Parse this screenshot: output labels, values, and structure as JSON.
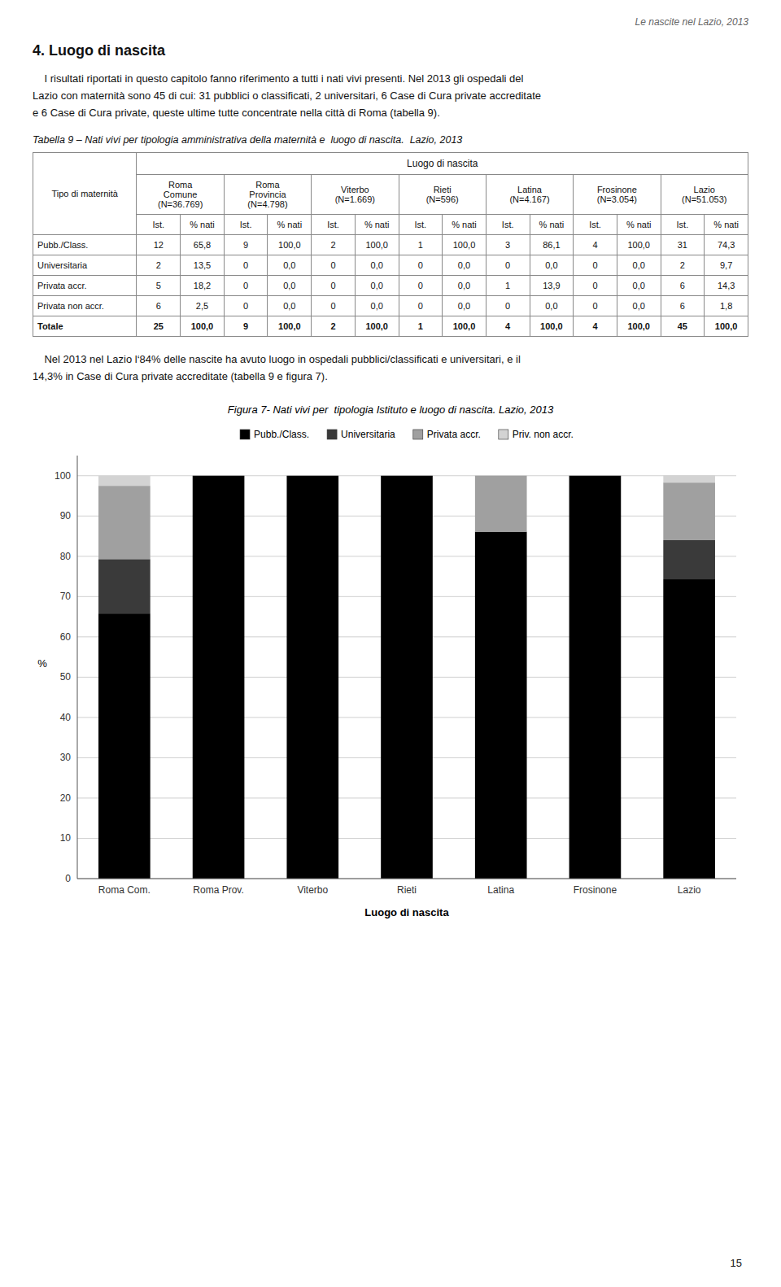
{
  "page": {
    "header_text": "Le nascite nel Lazio, 2013",
    "section_title": "4. Luogo di nascita",
    "paragraphs": [
      "    I risultati riportati in questo capitolo fanno riferimento a tutti i nati vivi presenti. Nel 2013 gli ospedali del\nLazio con maternità sono 45 di cui: 31 pubblici o classificati, 2 universitari, 6 Case di Cura private accreditate\ne 6 Case di Cura private, queste ultime tutte concentrate nella città di Roma (tabella 9).",
      "    Nel 2013 nel Lazio l‘84% delle nascite ha avuto luogo in ospedali pubblici/classificati e universitari, e il\n14,3% in Case di Cura private accreditate (tabella 9 e figura 7)."
    ],
    "table": {
      "title": "Tabella 9 – Nati vivi per tipologia amministrativa della maternità e  luogo di nascita.  Lazio, 2013",
      "tipo_label": "Tipo di maternità",
      "col_group_label": "Luogo di nascita",
      "col_headers": [
        "Roma\nComune\n(N=36.769)",
        "Roma\nProvincia\n(N=4.798)",
        "Viterbo\n(N=1.669)",
        "Rieti\n(N=596)",
        "Latina\n(N=4.167)",
        "Frosinone\n(N=3.054)",
        "Lazio\n(N=51.053)"
      ],
      "sub_headers": [
        "Ist.",
        "% nati"
      ],
      "rows": [
        {
          "label": "Pubb./Class.",
          "values": [
            12,
            65.8,
            9,
            100.0,
            2,
            100.0,
            1,
            100.0,
            3,
            86.1,
            4,
            100.0,
            31,
            74.3
          ],
          "value_labels": [
            "12",
            "65,8",
            "9",
            "100,0",
            "2",
            "100,0",
            "1",
            "100,0",
            "3",
            "86,1",
            "4",
            "100,0",
            "31",
            "74,3"
          ]
        },
        {
          "label": "Universitaria",
          "values": [
            2,
            13.5,
            0,
            0.0,
            0,
            0.0,
            0,
            0.0,
            0,
            0.0,
            0,
            0.0,
            2,
            9.7
          ],
          "value_labels": [
            "2",
            "13,5",
            "0",
            "0,0",
            "0",
            "0,0",
            "0",
            "0,0",
            "0",
            "0,0",
            "0",
            "0,0",
            "2",
            "9,7"
          ]
        },
        {
          "label": "Privata accr.",
          "values": [
            5,
            18.2,
            0,
            0.0,
            0,
            0.0,
            0,
            0.0,
            1,
            13.9,
            0,
            0.0,
            6,
            14.3
          ],
          "value_labels": [
            "5",
            "18,2",
            "0",
            "0,0",
            "0",
            "0,0",
            "0",
            "0,0",
            "1",
            "13,9",
            "0",
            "0,0",
            "6",
            "14,3"
          ]
        },
        {
          "label": "Privata non accr.",
          "values": [
            6,
            2.5,
            0,
            0.0,
            0,
            0.0,
            0,
            0.0,
            0,
            0.0,
            0,
            0.0,
            6,
            1.8
          ],
          "value_labels": [
            "6",
            "2,5",
            "0",
            "0,0",
            "0",
            "0,0",
            "0",
            "0,0",
            "0",
            "0,0",
            "0",
            "0,0",
            "6",
            "1,8"
          ]
        },
        {
          "label": "Totale",
          "values": [
            25,
            100.0,
            9,
            100.0,
            2,
            100.0,
            1,
            100.0,
            4,
            100.0,
            4,
            100.0,
            45,
            100.0
          ],
          "value_labels": [
            "25",
            "100,0",
            "9",
            "100,0",
            "2",
            "100,0",
            "1",
            "100,0",
            "4",
            "100,0",
            "4",
            "100,0",
            "45",
            "100,0"
          ]
        }
      ]
    },
    "page_number": "15"
  },
  "chart_data": {
    "type": "bar",
    "title": "Figura 7- Nati vivi per  tipologia Istituto e luogo di nascita. Lazio, 2013",
    "stacked": true,
    "categories": [
      "Roma Com.",
      "Roma Prov.",
      "Viterbo",
      "Rieti",
      "Latina",
      "Frosinone",
      "Lazio"
    ],
    "series": [
      {
        "name": "Pubb./Class.",
        "color": "#000000",
        "values": [
          65.8,
          100.0,
          100.0,
          100.0,
          86.1,
          100.0,
          74.3
        ]
      },
      {
        "name": "Universitaria",
        "color": "#3a3a3a",
        "values": [
          13.5,
          0.0,
          0.0,
          0.0,
          0.0,
          0.0,
          9.7
        ]
      },
      {
        "name": "Privata accr.",
        "color": "#a0a0a0",
        "values": [
          18.2,
          0.0,
          0.0,
          0.0,
          13.9,
          0.0,
          14.3
        ]
      },
      {
        "name": "Priv. non accr.",
        "color": "#d3d3d3",
        "values": [
          2.5,
          0.0,
          0.0,
          0.0,
          0.0,
          0.0,
          1.8
        ]
      }
    ],
    "x_label": "Luogo di nascita",
    "y_label": "%",
    "ylim": [
      0,
      105
    ],
    "yticks": [
      0,
      10,
      20,
      30,
      40,
      50,
      60,
      70,
      80,
      90,
      100
    ],
    "grid": true,
    "legend": "top"
  }
}
